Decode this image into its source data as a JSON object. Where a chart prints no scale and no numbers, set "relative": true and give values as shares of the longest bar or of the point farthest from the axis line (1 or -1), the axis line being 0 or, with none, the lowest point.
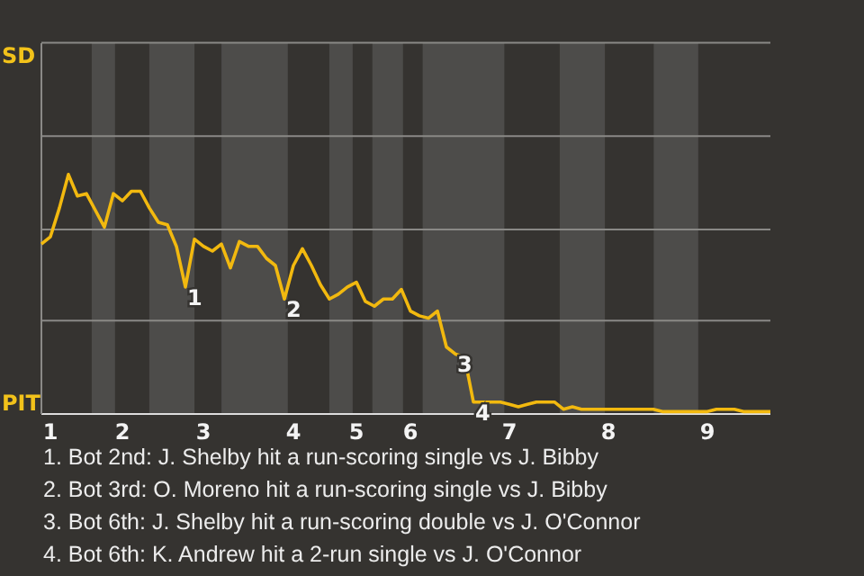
{
  "chart_data": {
    "type": "line",
    "relative": true,
    "categories": [
      null,
      "1",
      null,
      null,
      null,
      null,
      null,
      null,
      null,
      "2",
      null,
      null,
      null,
      null,
      null,
      null,
      null,
      null,
      "3",
      null,
      null,
      null,
      null,
      null,
      null,
      null,
      null,
      null,
      "4",
      null,
      null,
      null,
      null,
      null,
      null,
      "5",
      null,
      null,
      null,
      null,
      null,
      "6",
      null,
      null,
      null,
      null,
      null,
      null,
      null,
      null,
      null,
      null,
      "7",
      null,
      null,
      null,
      null,
      null,
      null,
      null,
      null,
      null,
      null,
      "8",
      null,
      null,
      null,
      null,
      null,
      null,
      null,
      null,
      null,
      null,
      "9",
      null,
      null,
      null,
      null,
      null,
      null,
      null
    ],
    "ref_lines": [
      {
        "axis": "y",
        "value": 1.55,
        "color": "#8a8986"
      },
      {
        "axis": "y",
        "value": 1.16,
        "color": "#8a8986"
      },
      {
        "axis": "y",
        "value": 0.77,
        "color": "#8a8986"
      },
      {
        "axis": "y",
        "value": 0.39,
        "color": "#8a8986"
      }
    ],
    "series": [
      {
        "color": "#f2b90f",
        "values": [
          0.71,
          0.74,
          0.86,
          1,
          0.91,
          0.92,
          0.85,
          0.78,
          0.92,
          0.89,
          0.93,
          0.93,
          0.86,
          0.8,
          0.79,
          0.7,
          0.53,
          0.73,
          0.7,
          0.68,
          0.71,
          0.61,
          0.72,
          0.7,
          0.7,
          0.65,
          0.62,
          0.48,
          0.62,
          0.69,
          0.62,
          0.54,
          0.48,
          0.5,
          0.53,
          0.55,
          0.47,
          0.45,
          0.48,
          0.48,
          0.52,
          0.43,
          0.41,
          0.4,
          0.43,
          0.28,
          0.25,
          0.24,
          0.05,
          0.05,
          0.05,
          0.05,
          0.04,
          0.03,
          0.04,
          0.05,
          0.05,
          0.05,
          0.02,
          0.03,
          0.02,
          0.02,
          0.02,
          0.02,
          0.02,
          0.02,
          0.02,
          0.02,
          0.02,
          0.01,
          0.01,
          0.01,
          0.01,
          0.01,
          0.01,
          0.02,
          0.02,
          0.02,
          0.01,
          0.01,
          0.01,
          0.01
        ]
      }
    ],
    "annotations": [
      "SD",
      "PIT",
      {
        "text": "1",
        "y": 0.53
      },
      {
        "text": "2",
        "y": 0.48
      },
      {
        "text": "3",
        "y": 0.25
      },
      {
        "text": "4",
        "y": 0.05
      },
      "1. Bot 2nd: J. Shelby hit a run-scoring single vs J. Bibby",
      "2. Bot 3rd: O. Moreno hit a run-scoring single vs J. Bibby",
      "3. Bot 6th: J. Shelby hit a run-scoring double vs J. O'Connor",
      "4. Bot 6th: K. Andrew hit a 2-run single vs J. O'Connor"
    ]
  }
}
